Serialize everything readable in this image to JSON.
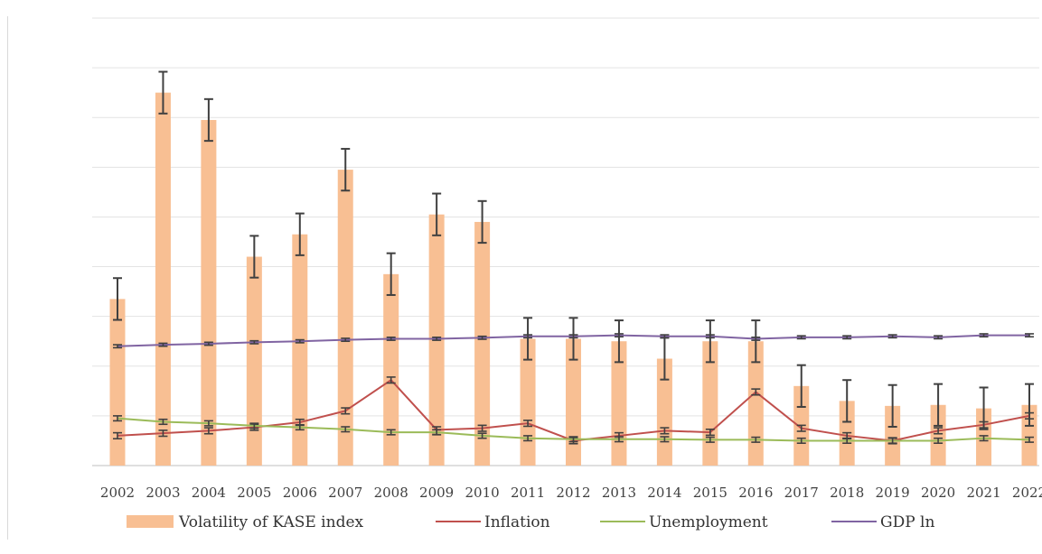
{
  "chart_data": {
    "type": "bar",
    "categories": [
      "2002",
      "2003",
      "2004",
      "2005",
      "2006",
      "2007",
      "2008",
      "2009",
      "2010",
      "2011",
      "2012",
      "2013",
      "2014",
      "2015",
      "2016",
      "2017",
      "2018",
      "2019",
      "2020",
      "2021",
      "2022"
    ],
    "ylim": [
      0,
      9
    ],
    "grid": true,
    "legend_placement": "bottom",
    "series": [
      {
        "name": "Volatility of KASE index",
        "kind": "bar",
        "color": "#f8bf93",
        "values": [
          3.35,
          7.5,
          6.95,
          4.2,
          4.65,
          5.95,
          3.85,
          5.05,
          4.9,
          2.55,
          2.55,
          2.5,
          2.15,
          2.5,
          2.5,
          1.6,
          1.3,
          1.2,
          1.22,
          1.15,
          1.22
        ],
        "error": [
          0.42,
          0.42,
          0.42,
          0.42,
          0.42,
          0.42,
          0.42,
          0.42,
          0.42,
          0.42,
          0.42,
          0.42,
          0.42,
          0.42,
          0.42,
          0.42,
          0.42,
          0.42,
          0.42,
          0.42,
          0.42
        ]
      },
      {
        "name": "Inflation",
        "kind": "line",
        "color": "#c0504d",
        "values": [
          0.6,
          0.65,
          0.7,
          0.77,
          0.87,
          1.1,
          1.72,
          0.72,
          0.75,
          0.85,
          0.5,
          0.6,
          0.7,
          0.67,
          1.48,
          0.75,
          0.6,
          0.5,
          0.7,
          0.82,
          1.0
        ],
        "error": [
          0.06,
          0.06,
          0.06,
          0.06,
          0.06,
          0.06,
          0.06,
          0.06,
          0.06,
          0.06,
          0.06,
          0.06,
          0.06,
          0.06,
          0.06,
          0.06,
          0.06,
          0.06,
          0.06,
          0.06,
          0.06
        ]
      },
      {
        "name": "Unemployment",
        "kind": "line",
        "color": "#9bbb59",
        "values": [
          0.95,
          0.88,
          0.85,
          0.8,
          0.77,
          0.73,
          0.67,
          0.67,
          0.6,
          0.55,
          0.53,
          0.53,
          0.53,
          0.52,
          0.52,
          0.5,
          0.5,
          0.5,
          0.5,
          0.55,
          0.52
        ],
        "error": [
          0.05,
          0.05,
          0.05,
          0.05,
          0.05,
          0.05,
          0.05,
          0.05,
          0.05,
          0.05,
          0.05,
          0.05,
          0.05,
          0.05,
          0.05,
          0.05,
          0.05,
          0.05,
          0.05,
          0.05,
          0.05
        ]
      },
      {
        "name": "GDP ln",
        "kind": "line",
        "color": "#8064a2",
        "values": [
          2.4,
          2.43,
          2.45,
          2.48,
          2.5,
          2.53,
          2.55,
          2.55,
          2.57,
          2.6,
          2.6,
          2.62,
          2.6,
          2.6,
          2.55,
          2.58,
          2.58,
          2.6,
          2.58,
          2.62,
          2.62
        ],
        "error": [
          0.03,
          0.03,
          0.03,
          0.03,
          0.03,
          0.03,
          0.03,
          0.03,
          0.03,
          0.03,
          0.03,
          0.03,
          0.03,
          0.03,
          0.03,
          0.03,
          0.03,
          0.03,
          0.03,
          0.03,
          0.03
        ]
      }
    ]
  }
}
